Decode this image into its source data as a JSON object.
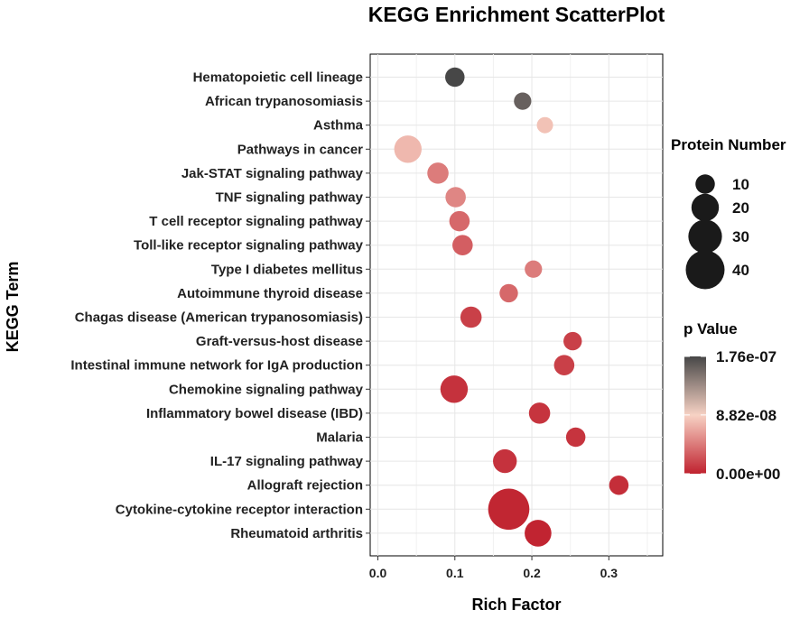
{
  "chart_data": {
    "type": "scatter",
    "title": "KEGG Enrichment ScatterPlot",
    "xlabel": "Rich Factor",
    "ylabel": "KEGG Term",
    "xlim": [
      -0.01,
      0.37
    ],
    "x_ticks": [
      "0.0",
      "0.1",
      "0.2",
      "0.3"
    ],
    "x_tick_values": [
      0.0,
      0.1,
      0.2,
      0.3
    ],
    "grid": true,
    "points": [
      {
        "term": "Hematopoietic cell lineage",
        "rich_factor": 0.1,
        "protein_number": 10,
        "p_value": 1.76e-07
      },
      {
        "term": "African trypanosomiasis",
        "rich_factor": 0.188,
        "protein_number": 8,
        "p_value": 1.6e-07
      },
      {
        "term": "Asthma",
        "rich_factor": 0.217,
        "protein_number": 7,
        "p_value": 8e-08
      },
      {
        "term": "Pathways in cancer",
        "rich_factor": 0.039,
        "protein_number": 20,
        "p_value": 7.5e-08
      },
      {
        "term": "Jak-STAT signaling pathway",
        "rich_factor": 0.078,
        "protein_number": 12,
        "p_value": 4.5e-08
      },
      {
        "term": "TNF signaling pathway",
        "rich_factor": 0.101,
        "protein_number": 11,
        "p_value": 5e-08
      },
      {
        "term": "T cell receptor signaling pathway",
        "rich_factor": 0.106,
        "protein_number": 11,
        "p_value": 3.5e-08
      },
      {
        "term": "Toll-like receptor signaling pathway",
        "rich_factor": 0.11,
        "protein_number": 11,
        "p_value": 3e-08
      },
      {
        "term": "Type I diabetes mellitus",
        "rich_factor": 0.202,
        "protein_number": 8,
        "p_value": 4.5e-08
      },
      {
        "term": "Autoimmune thyroid disease",
        "rich_factor": 0.17,
        "protein_number": 9,
        "p_value": 3.5e-08
      },
      {
        "term": "Chagas disease (American trypanosomiasis)",
        "rich_factor": 0.121,
        "protein_number": 12,
        "p_value": 1.5e-08
      },
      {
        "term": "Graft-versus-host disease",
        "rich_factor": 0.253,
        "protein_number": 9,
        "p_value": 1.5e-08
      },
      {
        "term": "Intestinal immune network for IgA production",
        "rich_factor": 0.242,
        "protein_number": 11,
        "p_value": 1.5e-08
      },
      {
        "term": "Chemokine signaling pathway",
        "rich_factor": 0.099,
        "protein_number": 20,
        "p_value": 8e-09
      },
      {
        "term": "Inflammatory bowel disease (IBD)",
        "rich_factor": 0.21,
        "protein_number": 12,
        "p_value": 9e-09
      },
      {
        "term": "Malaria",
        "rich_factor": 0.257,
        "protein_number": 10,
        "p_value": 9e-09
      },
      {
        "term": "IL-17 signaling pathway",
        "rich_factor": 0.165,
        "protein_number": 15,
        "p_value": 8e-09
      },
      {
        "term": "Allograft rejection",
        "rich_factor": 0.313,
        "protein_number": 10,
        "p_value": 6e-09
      },
      {
        "term": "Cytokine-cytokine receptor interaction",
        "rich_factor": 0.17,
        "protein_number": 45,
        "p_value": 2e-09
      },
      {
        "term": "Rheumatoid arthritis",
        "rich_factor": 0.208,
        "protein_number": 19,
        "p_value": 1e-09
      }
    ],
    "size_legend": {
      "title": "Protein Number",
      "values": [
        10,
        20,
        30,
        40
      ],
      "labels": [
        "10",
        "20",
        "30",
        "40"
      ]
    },
    "color_legend": {
      "title": "p Value",
      "min": 0,
      "max": 1.76e-07,
      "labels": [
        "1.76e-07",
        "8.82e-08",
        "0.00e+00"
      ],
      "label_values": [
        1.76e-07,
        8.82e-08,
        0
      ],
      "colors": {
        "low": "#c0222f",
        "mid": "#f7d2c4",
        "high": "#474747"
      }
    }
  }
}
